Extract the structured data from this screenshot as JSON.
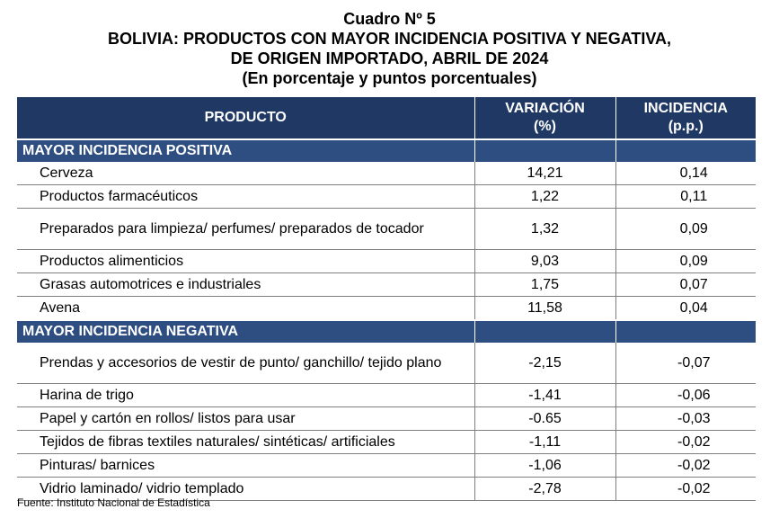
{
  "header": {
    "line1": "Cuadro Nº 5",
    "line2": "BOLIVIA: PRODUCTOS CON MAYOR INCIDENCIA POSITIVA Y NEGATIVA,",
    "line3": "DE ORIGEN IMPORTADO, ABRIL DE 2024",
    "line4": "(En porcentaje y puntos porcentuales)"
  },
  "columns": {
    "product": "PRODUCTO",
    "variation_line1": "VARIACIÓN",
    "variation_line2": "(%)",
    "incidence_line1": "INCIDENCIA",
    "incidence_line2": "(p.p.)"
  },
  "sections": [
    {
      "title": "MAYOR INCIDENCIA POSITIVA",
      "rows": [
        {
          "product": "Cerveza",
          "variation": "14,21",
          "incidence": "0,14"
        },
        {
          "product": "Productos farmacéuticos",
          "variation": "1,22",
          "incidence": "0,11"
        },
        {
          "product": "Preparados para limpieza/ perfumes/ preparados de tocador",
          "variation": "1,32",
          "incidence": "0,09"
        },
        {
          "product": "Productos alimenticios",
          "variation": "9,03",
          "incidence": "0,09"
        },
        {
          "product": "Grasas automotrices e industriales",
          "variation": "1,75",
          "incidence": "0,07"
        },
        {
          "product": "Avena",
          "variation": "11,58",
          "incidence": "0,04"
        }
      ]
    },
    {
      "title": "MAYOR INCIDENCIA NEGATIVA",
      "rows": [
        {
          "product": "Prendas y accesorios de vestir de punto/ ganchillo/ tejido plano",
          "variation": "-2,15",
          "incidence": "-0,07"
        },
        {
          "product": "Harina de trigo",
          "variation": "-1,41",
          "incidence": "-0,06"
        },
        {
          "product": "Papel y cartón en rollos/ listos para usar",
          "variation": "-0.65",
          "incidence": "-0,03"
        },
        {
          "product": "Tejidos de fibras textiles naturales/ sintéticas/ artificiales",
          "variation": "-1,11",
          "incidence": "-0,02"
        },
        {
          "product": "Pinturas/ barnices",
          "variation": "-1,06",
          "incidence": "-0,02"
        },
        {
          "product": "Vidrio laminado/ vidrio templado",
          "variation": "-2,78",
          "incidence": "-0,02"
        }
      ]
    }
  ],
  "source": "Fuente: Instituto Nacional de Estadística",
  "colors": {
    "header_bg": "#1f3864",
    "section_bg": "#2e4d80"
  }
}
